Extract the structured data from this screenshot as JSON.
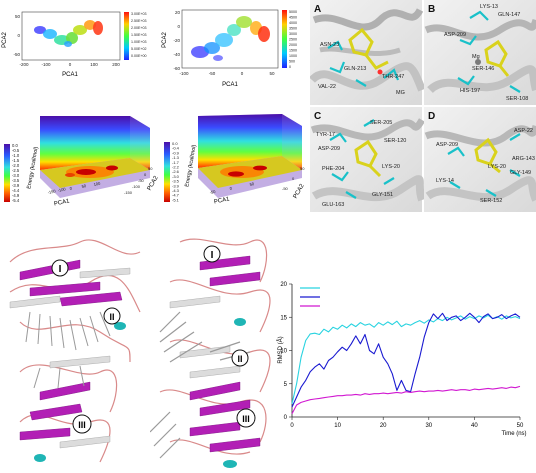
{
  "pca_plots": [
    {
      "xlabel": "PCA1",
      "ylabel": "PCA2",
      "xticks": [
        "-200",
        "-100",
        "0",
        "100",
        "200"
      ],
      "yticks": [
        "50",
        "0",
        "-50"
      ],
      "legend": [
        "3.00E+03",
        "2.50E+03",
        "2.00E+03",
        "1.50E+03",
        "1.00E+03",
        "5.00E+02",
        "0.00E+00"
      ]
    },
    {
      "xlabel": "PCA1",
      "ylabel": "PCA2",
      "xticks": [
        "-100",
        "-50",
        "0",
        "50"
      ],
      "yticks": [
        "20",
        "0",
        "-20",
        "-40",
        "-60"
      ],
      "legend": [
        "5000",
        "4500",
        "4000",
        "3500",
        "3000",
        "2500",
        "2000",
        "1500",
        "1000",
        "500",
        "0"
      ]
    }
  ],
  "fel_plots": [
    {
      "zlabel": "Energy (kcal/mol)",
      "xlabel": "PCA1",
      "ylabel": "PCA2",
      "colorbar": [
        "0.0",
        "-0.5",
        "-1.0",
        "-1.5",
        "-2.0",
        "-2.5",
        "-3.0",
        "-3.5",
        "-3.9",
        "-4.4",
        "-4.9",
        "-5.4"
      ],
      "xticks": [
        "-150",
        "-100",
        "0",
        "50",
        "100"
      ],
      "yticks": [
        "-150",
        "-100",
        "-50",
        "0",
        "50"
      ]
    },
    {
      "zlabel": "Energy (kcal/mol)",
      "xlabel": "PCA1",
      "ylabel": "PCA2",
      "colorbar": [
        "0.0",
        "-0.4",
        "-0.9",
        "-1.3",
        "-1.7",
        "-2.2",
        "-2.6",
        "-3.0",
        "-3.5",
        "-3.9",
        "-4.3",
        "-4.7",
        "-5.1"
      ],
      "xticks": [
        "-50",
        "0",
        "50"
      ],
      "yticks": [
        "-50",
        "0",
        "50"
      ]
    }
  ],
  "docking_panels": [
    {
      "label": "A",
      "residues": [
        "ASN-23",
        "VAL-22",
        "THR-247",
        "GLN-213",
        "MG"
      ]
    },
    {
      "label": "B",
      "residues": [
        "LYS-13",
        "GLN-147",
        "ASP-209",
        "Mg",
        "SER-146",
        "HIS-197",
        "SER-108"
      ]
    },
    {
      "label": "C",
      "residues": [
        "SER-205",
        "TYR-17",
        "ASP-209",
        "SER-120",
        "PHE-204",
        "LYS-20",
        "GLU-163",
        "GLY-151"
      ]
    },
    {
      "label": "D",
      "residues": [
        "ASP-22",
        "ASP-209",
        "ARG-143",
        "LYS-20",
        "GLY-149",
        "LYS-14",
        "SER-152"
      ]
    }
  ],
  "structure_labels": {
    "left": [
      "I",
      "II",
      "III"
    ],
    "right": [
      "I",
      "II",
      "III"
    ]
  },
  "colors": {
    "sheet": "#b21fb5",
    "loop": "#d98a8a",
    "coil": "#cfcfcf",
    "helix": "#1fb5b5",
    "ligand": "#d9d21c",
    "stick": "#19c1c9",
    "protein_gray": "#9a9a9a"
  },
  "chart_data": {
    "type": "line",
    "xlabel": "Time (ns)",
    "ylabel": "RMSD (Å)",
    "xlim": [
      0,
      50
    ],
    "ylim": [
      0,
      20
    ],
    "xticks": [
      0,
      10,
      20,
      30,
      40,
      50
    ],
    "yticks": [
      0,
      5,
      10,
      15,
      20
    ],
    "legend_position": "top-left",
    "grid": false,
    "series": [
      {
        "color": "#29d3e0",
        "x": [
          0,
          1,
          2,
          3,
          4,
          5,
          6,
          7,
          8,
          9,
          10,
          11,
          12,
          13,
          14,
          15,
          16,
          17,
          18,
          19,
          20,
          21,
          22,
          23,
          24,
          25,
          26,
          27,
          28,
          29,
          30,
          31,
          32,
          33,
          34,
          35,
          36,
          37,
          38,
          39,
          40,
          41,
          42,
          43,
          44,
          45,
          46,
          47,
          48,
          49,
          50
        ],
        "y": [
          2,
          5,
          9,
          11.5,
          12.5,
          12.6,
          12.4,
          13.2,
          12.8,
          13.5,
          13.2,
          13.8,
          13.4,
          14,
          13.6,
          14.2,
          13.8,
          14,
          13.5,
          14.2,
          13.8,
          14.3,
          13.9,
          14.4,
          13.6,
          14,
          13.8,
          14.2,
          14.5,
          14.1,
          14.6,
          14.3,
          14.8,
          14.5,
          15,
          14.6,
          14.9,
          15.2,
          14.7,
          15.1,
          14.8,
          15.2,
          14.9,
          15.3,
          14.8,
          15.1,
          14.7,
          15.2,
          14.9,
          15.1,
          14.8
        ]
      },
      {
        "color": "#1a1ad1",
        "x": [
          0,
          1,
          2,
          3,
          4,
          5,
          6,
          7,
          8,
          9,
          10,
          11,
          12,
          13,
          14,
          15,
          16,
          17,
          18,
          19,
          20,
          21,
          22,
          23,
          24,
          25,
          26,
          27,
          28,
          29,
          30,
          31,
          32,
          33,
          34,
          35,
          36,
          37,
          38,
          39,
          40,
          41,
          42,
          43,
          44,
          45,
          46,
          47,
          48,
          49,
          50
        ],
        "y": [
          1.5,
          3,
          4.5,
          5.5,
          6.8,
          7.5,
          8,
          7.2,
          8.5,
          9,
          9.8,
          10.5,
          10,
          11,
          12.2,
          11,
          12.4,
          10,
          9.5,
          11,
          9,
          8,
          6.5,
          4,
          5.5,
          4,
          3.8,
          6.5,
          9,
          12,
          14.2,
          15.5,
          14.8,
          15.6,
          14.5,
          15,
          15.2,
          14.5,
          15,
          15.6,
          15,
          14.2,
          15.1,
          15.5,
          14.8,
          15,
          15.4,
          14.8,
          15.2,
          15.5,
          15
        ]
      },
      {
        "color": "#d118d1",
        "x": [
          0,
          1,
          2,
          3,
          4,
          5,
          6,
          7,
          8,
          9,
          10,
          11,
          12,
          13,
          14,
          15,
          16,
          17,
          18,
          19,
          20,
          21,
          22,
          23,
          24,
          25,
          26,
          27,
          28,
          29,
          30,
          31,
          32,
          33,
          34,
          35,
          36,
          37,
          38,
          39,
          40,
          41,
          42,
          43,
          44,
          45,
          46,
          47,
          48,
          49,
          50
        ],
        "y": [
          0.5,
          1.8,
          2.2,
          2.4,
          2.6,
          2.7,
          2.8,
          2.9,
          3,
          3.1,
          3.2,
          3.2,
          3.3,
          3.3,
          3.4,
          3.3,
          3.5,
          3.4,
          3.5,
          3.5,
          3.6,
          3.5,
          3.6,
          3.7,
          3.6,
          3.8,
          3.7,
          3.8,
          3.9,
          3.8,
          3.9,
          3.9,
          4,
          3.9,
          4,
          4.1,
          4,
          4.1,
          4.1,
          4,
          4.2,
          4.1,
          4.2,
          4.3,
          4.2,
          4.3,
          4.4,
          4.3,
          4.5,
          4.4,
          4.6
        ]
      }
    ]
  }
}
